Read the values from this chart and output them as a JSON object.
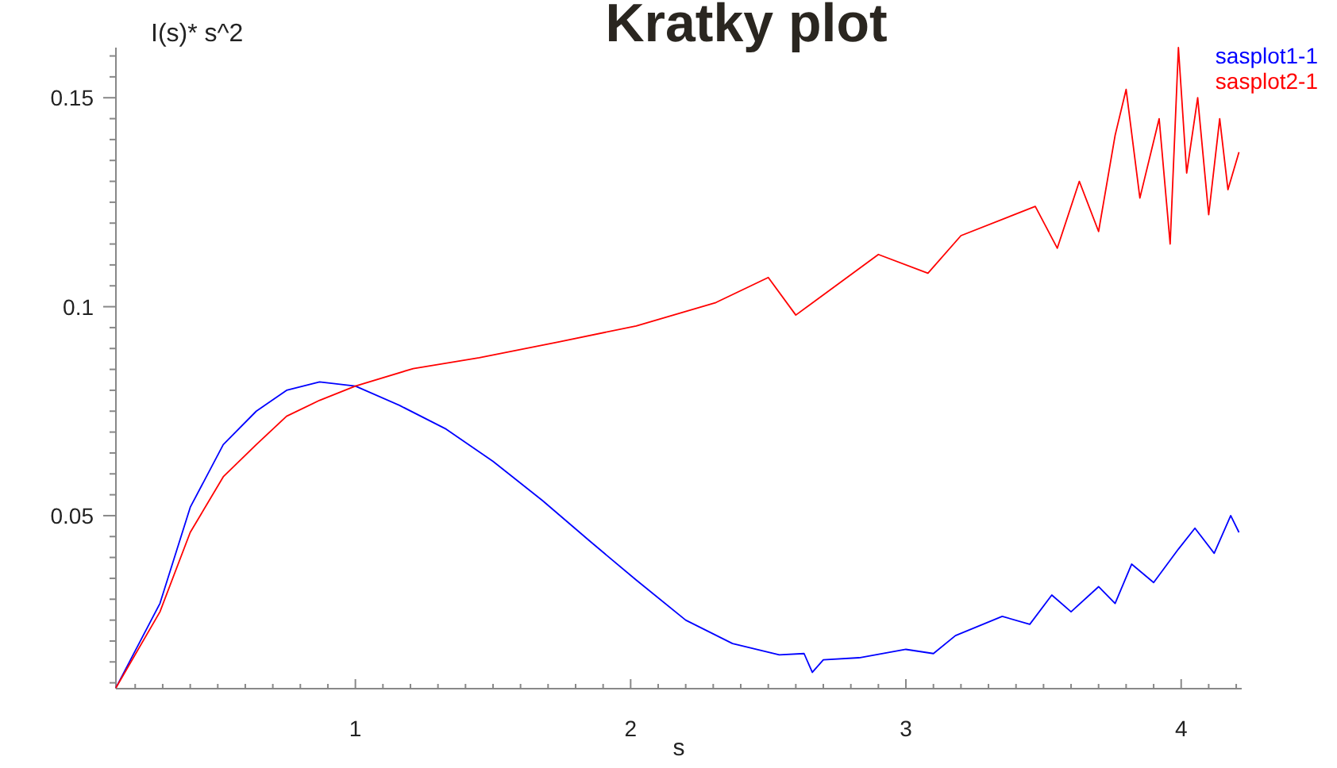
{
  "chart_data": {
    "type": "line",
    "title": "Kratky plot",
    "xlabel": "s",
    "ylabel": "I(s)* s^2",
    "xlim": [
      0.13,
      4.22
    ],
    "ylim": [
      0.0086,
      0.162
    ],
    "xticks": [
      {
        "value": 0.2,
        "label": null
      },
      {
        "value": 0.3,
        "label": null
      },
      {
        "value": 0.4,
        "label": null
      },
      {
        "value": 0.5,
        "label": null
      },
      {
        "value": 0.6,
        "label": null
      },
      {
        "value": 0.7,
        "label": null
      },
      {
        "value": 0.8,
        "label": null
      },
      {
        "value": 0.9,
        "label": null
      },
      1,
      {
        "value": 1.1,
        "label": null
      },
      {
        "value": 1.2,
        "label": null
      },
      {
        "value": 1.3,
        "label": null
      },
      {
        "value": 1.4,
        "label": null
      },
      {
        "value": 1.5,
        "label": null
      },
      {
        "value": 1.6,
        "label": null
      },
      {
        "value": 1.7,
        "label": null
      },
      {
        "value": 1.8,
        "label": null
      },
      {
        "value": 1.9,
        "label": null
      },
      2,
      {
        "value": 2.1,
        "label": null
      },
      {
        "value": 2.2,
        "label": null
      },
      {
        "value": 2.3,
        "label": null
      },
      {
        "value": 2.4,
        "label": null
      },
      {
        "value": 2.5,
        "label": null
      },
      {
        "value": 2.6,
        "label": null
      },
      {
        "value": 2.7,
        "label": null
      },
      {
        "value": 2.8,
        "label": null
      },
      {
        "value": 2.9,
        "label": null
      },
      3,
      {
        "value": 3.1,
        "label": null
      },
      {
        "value": 3.2,
        "label": null
      },
      {
        "value": 3.3,
        "label": null
      },
      {
        "value": 3.4,
        "label": null
      },
      {
        "value": 3.5,
        "label": null
      },
      {
        "value": 3.6,
        "label": null
      },
      {
        "value": 3.7,
        "label": null
      },
      {
        "value": 3.8,
        "label": null
      },
      {
        "value": 3.9,
        "label": null
      },
      4,
      {
        "value": 4.1,
        "label": null
      },
      {
        "value": 4.2,
        "label": null
      }
    ],
    "yticks": [
      {
        "value": 0.01,
        "label": null
      },
      {
        "value": 0.015,
        "label": null
      },
      {
        "value": 0.02,
        "label": null
      },
      {
        "value": 0.025,
        "label": null
      },
      {
        "value": 0.03,
        "label": null
      },
      {
        "value": 0.035,
        "label": null
      },
      {
        "value": 0.04,
        "label": null
      },
      {
        "value": 0.045,
        "label": null
      },
      0.05,
      {
        "value": 0.055,
        "label": null
      },
      {
        "value": 0.06,
        "label": null
      },
      {
        "value": 0.065,
        "label": null
      },
      {
        "value": 0.07,
        "label": null
      },
      {
        "value": 0.075,
        "label": null
      },
      {
        "value": 0.08,
        "label": null
      },
      {
        "value": 0.085,
        "label": null
      },
      {
        "value": 0.09,
        "label": null
      },
      {
        "value": 0.095,
        "label": null
      },
      0.1,
      {
        "value": 0.105,
        "label": null
      },
      {
        "value": 0.11,
        "label": null
      },
      {
        "value": 0.115,
        "label": null
      },
      {
        "value": 0.12,
        "label": null
      },
      {
        "value": 0.125,
        "label": null
      },
      {
        "value": 0.13,
        "label": null
      },
      {
        "value": 0.135,
        "label": null
      },
      {
        "value": 0.14,
        "label": null
      },
      {
        "value": 0.145,
        "label": null
      },
      0.15,
      {
        "value": 0.155,
        "label": null
      },
      {
        "value": 0.16,
        "label": null
      }
    ],
    "grid": false,
    "legend": "top right",
    "line_style": "solid",
    "series": [
      {
        "name": "sasplot1-1",
        "color": "#0000ff",
        "x": [
          0.13,
          0.29,
          0.4,
          0.52,
          0.64,
          0.75,
          0.87,
          1.0,
          1.16,
          1.33,
          1.5,
          1.68,
          1.85,
          2.02,
          2.2,
          2.37,
          2.54,
          2.63,
          2.66,
          2.7,
          2.83,
          3.0,
          3.1,
          3.18,
          3.35,
          3.45,
          3.53,
          3.6,
          3.7,
          3.76,
          3.82,
          3.9,
          3.99,
          4.05,
          4.12,
          4.18,
          4.21
        ],
        "values": [
          0.0088,
          0.029,
          0.052,
          0.067,
          0.075,
          0.08,
          0.082,
          0.081,
          0.0764,
          0.0707,
          0.063,
          0.0536,
          0.044,
          0.0346,
          0.025,
          0.0194,
          0.0167,
          0.017,
          0.0125,
          0.0155,
          0.016,
          0.018,
          0.017,
          0.0213,
          0.0259,
          0.024,
          0.031,
          0.027,
          0.033,
          0.029,
          0.0384,
          0.034,
          0.042,
          0.047,
          0.041,
          0.05,
          0.046
        ]
      },
      {
        "name": "sasplot2-1",
        "color": "#ff0000",
        "x": [
          0.13,
          0.29,
          0.4,
          0.52,
          0.64,
          0.75,
          0.87,
          1.0,
          1.21,
          1.45,
          1.74,
          2.02,
          2.31,
          2.5,
          2.6,
          2.9,
          3.08,
          3.2,
          3.47,
          3.55,
          3.63,
          3.7,
          3.76,
          3.8,
          3.85,
          3.92,
          3.96,
          3.99,
          4.02,
          4.06,
          4.1,
          4.14,
          4.17,
          4.21
        ],
        "values": [
          0.0088,
          0.027,
          0.046,
          0.0593,
          0.067,
          0.0738,
          0.0776,
          0.081,
          0.0852,
          0.0878,
          0.0916,
          0.0954,
          0.101,
          0.107,
          0.098,
          0.1125,
          0.108,
          0.117,
          0.124,
          0.114,
          0.13,
          0.118,
          0.141,
          0.152,
          0.126,
          0.145,
          0.115,
          0.162,
          0.132,
          0.15,
          0.122,
          0.145,
          0.128,
          0.137
        ]
      }
    ]
  }
}
